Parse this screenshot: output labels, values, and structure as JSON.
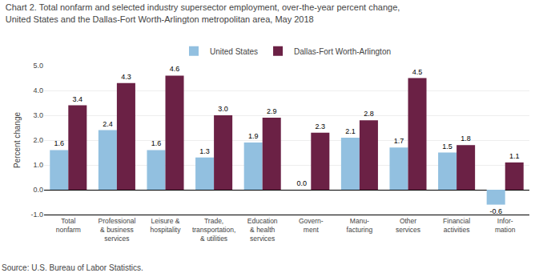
{
  "chart_data": {
    "type": "bar",
    "title": "Chart 2. Total nonfarm and selected industry supersector employment, over-the-year percent change,",
    "subtitle": "United States and the Dallas-Fort Worth-Arlington metropolitan area, May 2018",
    "ylabel": "Percent change",
    "source": "Source: U.S. Bureau of Labor Statistics.",
    "categories": [
      "Total\nnonfarm",
      "Professional\n& business\nservices",
      "Leisure &\nhospitality",
      "Trade,\ntransportation,\n& utilities",
      "Education\n& health\nservices",
      "Govern-\nment",
      "Manu-\nfacturing",
      "Other\nservices",
      "Financial\nactivities",
      "Infor-\nmation"
    ],
    "series": [
      {
        "name": "United States",
        "color": "#92C0E0",
        "values": [
          1.6,
          2.4,
          1.6,
          1.3,
          1.9,
          0.0,
          2.1,
          1.7,
          1.5,
          -0.6
        ],
        "value_labels": [
          "1.6",
          "2.4",
          "1.6",
          "1.3",
          "1.9",
          "0.0",
          "2.1",
          "1.7",
          "1.5",
          "-0.6"
        ]
      },
      {
        "name": "Dallas-Fort Worth-Arlington",
        "color": "#6B2145",
        "values": [
          3.4,
          4.3,
          4.6,
          3.0,
          2.9,
          2.3,
          2.8,
          4.5,
          1.8,
          1.1
        ],
        "value_labels": [
          "3.4",
          "4.3",
          "4.6",
          "3.0",
          "2.9",
          "2.3",
          "2.8",
          "4.5",
          "1.8",
          "1.1"
        ]
      }
    ],
    "ylim": [
      -1.0,
      5.0
    ],
    "yticks": [
      {
        "value": -1.0,
        "label": "-1.0"
      },
      {
        "value": 0.0,
        "label": "0.0"
      },
      {
        "value": 1.0,
        "label": "1.0"
      },
      {
        "value": 2.0,
        "label": "2.0"
      },
      {
        "value": 3.0,
        "label": "3.0"
      },
      {
        "value": 4.0,
        "label": "4.0"
      },
      {
        "value": 5.0,
        "label": "5.0"
      }
    ],
    "grid": true,
    "legend": "upper center",
    "data_labels": true
  }
}
